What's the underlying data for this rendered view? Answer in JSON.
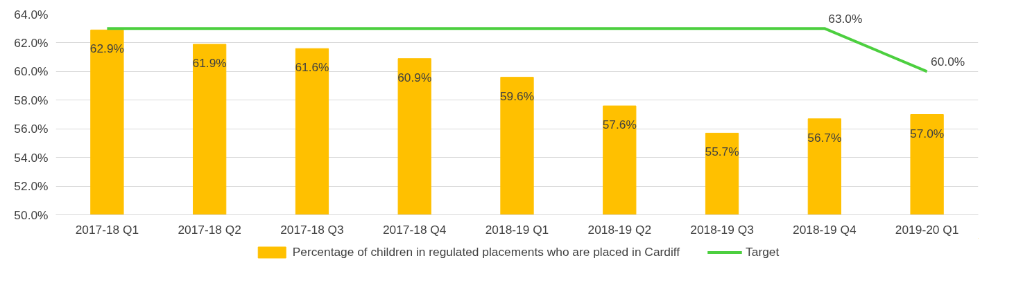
{
  "chart_data": {
    "type": "bar",
    "categories": [
      "2017-18 Q1",
      "2017-18 Q2",
      "2017-18 Q3",
      "2017-18 Q4",
      "2018-19 Q1",
      "2018-19 Q2",
      "2018-19 Q3",
      "2018-19 Q4",
      "2019-20 Q1"
    ],
    "series": [
      {
        "name": "Percentage of children in regulated placements who are placed in Cardiff",
        "color": "#ffc000",
        "values": [
          62.9,
          61.9,
          61.6,
          60.9,
          59.6,
          57.6,
          55.7,
          56.7,
          57.0
        ],
        "value_labels": [
          "62.9%",
          "61.9%",
          "61.6%",
          "60.9%",
          "59.6%",
          "57.6%",
          "55.7%",
          "56.7%",
          "57.0%"
        ]
      },
      {
        "name": "Target",
        "type": "line",
        "color": "#4ccf3f",
        "values": [
          63.0,
          63.0,
          63.0,
          63.0,
          63.0,
          63.0,
          63.0,
          63.0,
          60.0
        ],
        "value_labels": [
          null,
          null,
          null,
          null,
          null,
          null,
          null,
          "63.0%",
          "60.0%"
        ]
      }
    ],
    "ylim": [
      50,
      64
    ],
    "yticks": [
      {
        "value": 50,
        "label": "50.0%"
      },
      {
        "value": 52,
        "label": "52.0%"
      },
      {
        "value": 54,
        "label": "54.0%"
      },
      {
        "value": 56,
        "label": "56.0%"
      },
      {
        "value": 58,
        "label": "58.0%"
      },
      {
        "value": 60,
        "label": "60.0%"
      },
      {
        "value": 62,
        "label": "62.0%"
      },
      {
        "value": 64,
        "label": "64.0%"
      }
    ],
    "grid": "y",
    "legend": "bottom"
  }
}
